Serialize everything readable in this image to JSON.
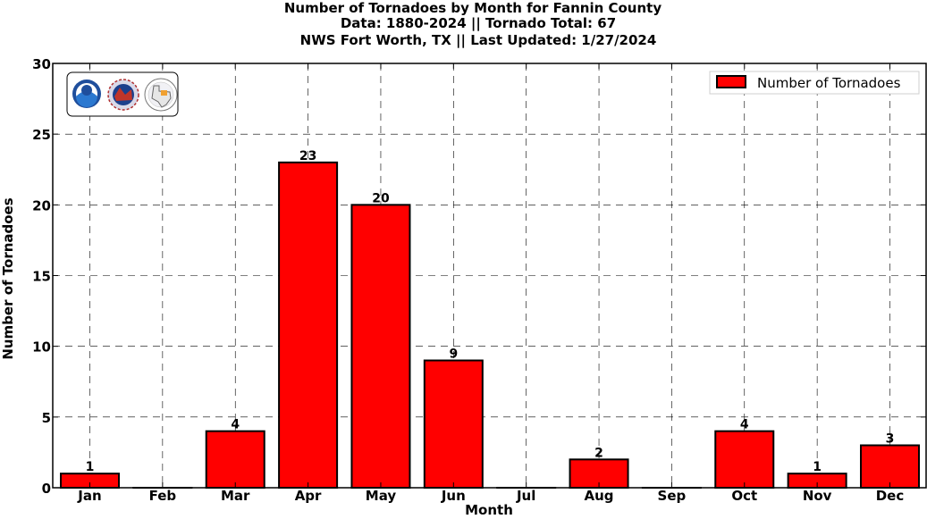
{
  "chart_data": {
    "type": "bar",
    "title_lines": [
      "Number of Tornadoes by Month for Fannin County",
      "Data: 1880-2024 || Tornado Total: 67",
      "NWS Fort Worth, TX || Last Updated: 1/27/2024"
    ],
    "xlabel": "Month",
    "ylabel": "Number of Tornadoes",
    "categories": [
      "Jan",
      "Feb",
      "Mar",
      "Apr",
      "May",
      "Jun",
      "Jul",
      "Aug",
      "Sep",
      "Oct",
      "Nov",
      "Dec"
    ],
    "series": [
      {
        "name": "Number of Tornadoes",
        "values": [
          1,
          0,
          4,
          23,
          20,
          9,
          0,
          2,
          0,
          4,
          1,
          3
        ],
        "color": "#ff0000",
        "edge_color": "#000000"
      }
    ],
    "data_labels": [
      "1",
      "",
      "4",
      "23",
      "20",
      "9",
      "",
      "2",
      "",
      "4",
      "1",
      "3"
    ],
    "ylim": [
      0,
      30
    ],
    "yticks": [
      "0",
      "5",
      "10",
      "15",
      "20",
      "25",
      "30"
    ],
    "grid": true,
    "legend_position": "top-right"
  },
  "logos": [
    "noaa-logo",
    "national-weather-service-logo",
    "texas-map-logo"
  ]
}
